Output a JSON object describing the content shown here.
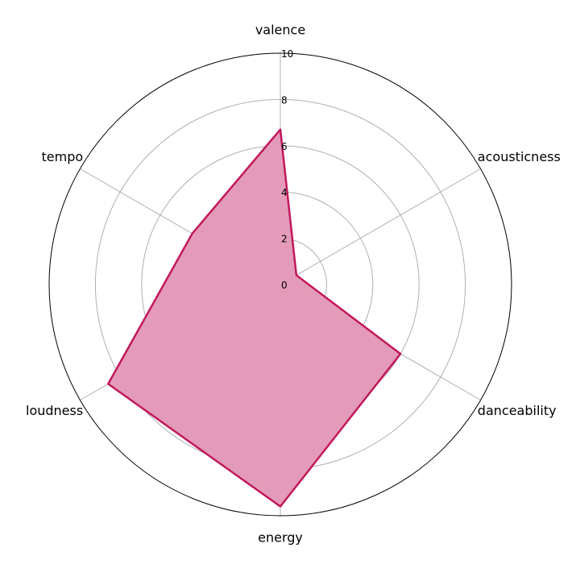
{
  "chart_data": {
    "type": "radar",
    "categories": [
      "valence",
      "acousticness",
      "danceability",
      "energy",
      "loudness",
      "tempo"
    ],
    "series": [
      {
        "values": [
          6.7,
          0.8,
          6.0,
          9.6,
          8.6,
          4.4
        ]
      }
    ],
    "rlim": [
      0,
      10
    ],
    "rticks": [
      0,
      2,
      4,
      6,
      8,
      10
    ],
    "grid": true,
    "colors": {
      "line": "#c2185b",
      "fill": "#e39bb9",
      "grid": "#b0b0b0",
      "frame": "#000000"
    }
  }
}
